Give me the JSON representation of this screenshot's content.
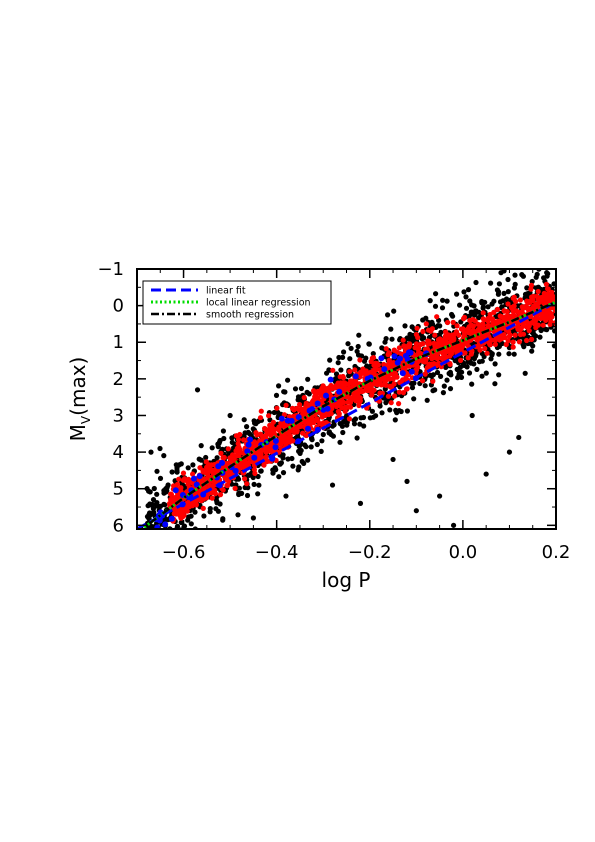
{
  "chart_data": {
    "type": "scatter",
    "title": "",
    "xlabel": "log P",
    "ylabel": "M_V(max)",
    "ylabel_main": "M",
    "ylabel_sub": "V",
    "ylabel_tail": "(max)",
    "xlim": [
      -0.7,
      0.2
    ],
    "ylim": [
      6.1,
      -1.0
    ],
    "y_axis_inverted": true,
    "x_ticks": [
      -0.6,
      -0.4,
      -0.2,
      0.0,
      0.2
    ],
    "x_tick_labels": [
      "−0.6",
      "−0.4",
      "−0.2",
      "0.0",
      "0.2"
    ],
    "y_ticks": [
      -1,
      0,
      1,
      2,
      3,
      4,
      5,
      6
    ],
    "y_tick_labels": [
      "−1",
      "0",
      "1",
      "2",
      "3",
      "4",
      "5",
      "6"
    ],
    "grid": false,
    "legend_position": "top-left",
    "relation_points_logP": [
      -0.7,
      -0.6,
      -0.5,
      -0.4,
      -0.3,
      -0.2,
      -0.1,
      0.0,
      0.1,
      0.2
    ],
    "series": [
      {
        "name": "linear fit",
        "style": "dashed",
        "color": "#0000ff",
        "x": [
          -0.7,
          0.2
        ],
        "y": [
          6.1,
          -0.1
        ]
      },
      {
        "name": "local linear regression",
        "style": "dotted",
        "color": "#00dd00",
        "x": [
          -0.7,
          -0.6,
          -0.5,
          -0.4,
          -0.3,
          -0.2,
          -0.1,
          0.0,
          0.1,
          0.2
        ],
        "y": [
          6.2,
          5.25,
          4.4,
          3.55,
          2.75,
          2.05,
          1.45,
          0.95,
          0.45,
          -0.1
        ]
      },
      {
        "name": "smooth regression",
        "style": "dash-dot",
        "color": "#000000",
        "x": [
          -0.7,
          -0.6,
          -0.5,
          -0.4,
          -0.3,
          -0.2,
          -0.1,
          0.0,
          0.1,
          0.2
        ],
        "y": [
          6.2,
          5.25,
          4.4,
          3.55,
          2.75,
          2.05,
          1.45,
          0.95,
          0.45,
          -0.1
        ]
      }
    ],
    "scatter_groups": [
      {
        "color": "#000000",
        "count": 1500,
        "scatter_mag": 0.55,
        "xrange": [
          -0.68,
          0.2
        ]
      },
      {
        "color": "#ff0000",
        "count": 1600,
        "scatter_mag": 0.28,
        "xrange": [
          -0.63,
          0.2
        ]
      },
      {
        "color": "#0000ff",
        "count": 70,
        "scatter_mag": 0.25,
        "xrange": [
          -0.66,
          -0.06
        ]
      }
    ],
    "outliers": [
      {
        "x": -0.45,
        "y": 5.8
      },
      {
        "x": -0.38,
        "y": 5.2
      },
      {
        "x": -0.28,
        "y": 4.9
      },
      {
        "x": -0.22,
        "y": 5.4
      },
      {
        "x": -0.1,
        "y": 5.6
      },
      {
        "x": -0.05,
        "y": 5.2
      },
      {
        "x": -0.02,
        "y": 6.0
      },
      {
        "x": 0.05,
        "y": 4.6
      },
      {
        "x": 0.1,
        "y": 4.0
      },
      {
        "x": 0.12,
        "y": 3.6
      },
      {
        "x": -0.15,
        "y": 4.2
      },
      {
        "x": -0.57,
        "y": 2.3
      },
      {
        "x": -0.5,
        "y": 3.0
      },
      {
        "x": 0.02,
        "y": 3.0
      },
      {
        "x": 0.15,
        "y": 1.1
      },
      {
        "x": -0.12,
        "y": 4.8
      },
      {
        "x": 0.18,
        "y": -0.9
      },
      {
        "x": 0.13,
        "y": -0.8
      }
    ]
  }
}
